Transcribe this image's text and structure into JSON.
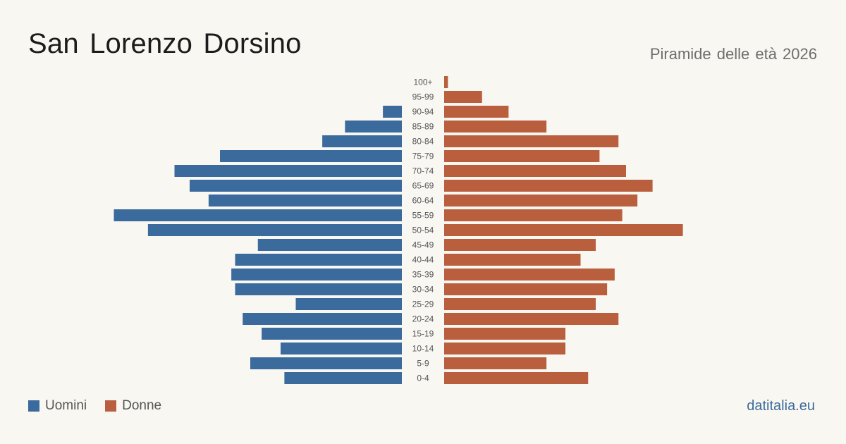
{
  "header": {
    "title": "San Lorenzo  Dorsino",
    "subtitle": "Piramide delle età 2026"
  },
  "legend": {
    "men_label": "Uomini",
    "women_label": "Donne"
  },
  "brand": "datitalia.eu",
  "colors": {
    "men": "#3b6a9c",
    "women": "#b95f3e",
    "background": "#f9f7f2"
  },
  "chart_data": {
    "type": "bar",
    "orientation": "horizontal-pyramid",
    "categories": [
      "100+",
      "95-99",
      "90-94",
      "85-89",
      "80-84",
      "75-79",
      "70-74",
      "65-69",
      "60-64",
      "55-59",
      "50-54",
      "45-49",
      "40-44",
      "35-39",
      "30-34",
      "25-29",
      "20-24",
      "15-19",
      "10-14",
      "5-9",
      "0-4"
    ],
    "series": [
      {
        "name": "Uomini",
        "values": [
          0,
          0,
          5,
          15,
          21,
          48,
          60,
          56,
          51,
          76,
          67,
          38,
          44,
          45,
          44,
          28,
          42,
          37,
          32,
          40,
          31
        ]
      },
      {
        "name": "Donne",
        "values": [
          1,
          10,
          17,
          27,
          46,
          41,
          48,
          55,
          51,
          47,
          63,
          40,
          36,
          45,
          43,
          40,
          46,
          32,
          32,
          27,
          38
        ]
      }
    ],
    "xlim": [
      0,
      80
    ],
    "grid": false,
    "legend_position": "bottom-left"
  }
}
